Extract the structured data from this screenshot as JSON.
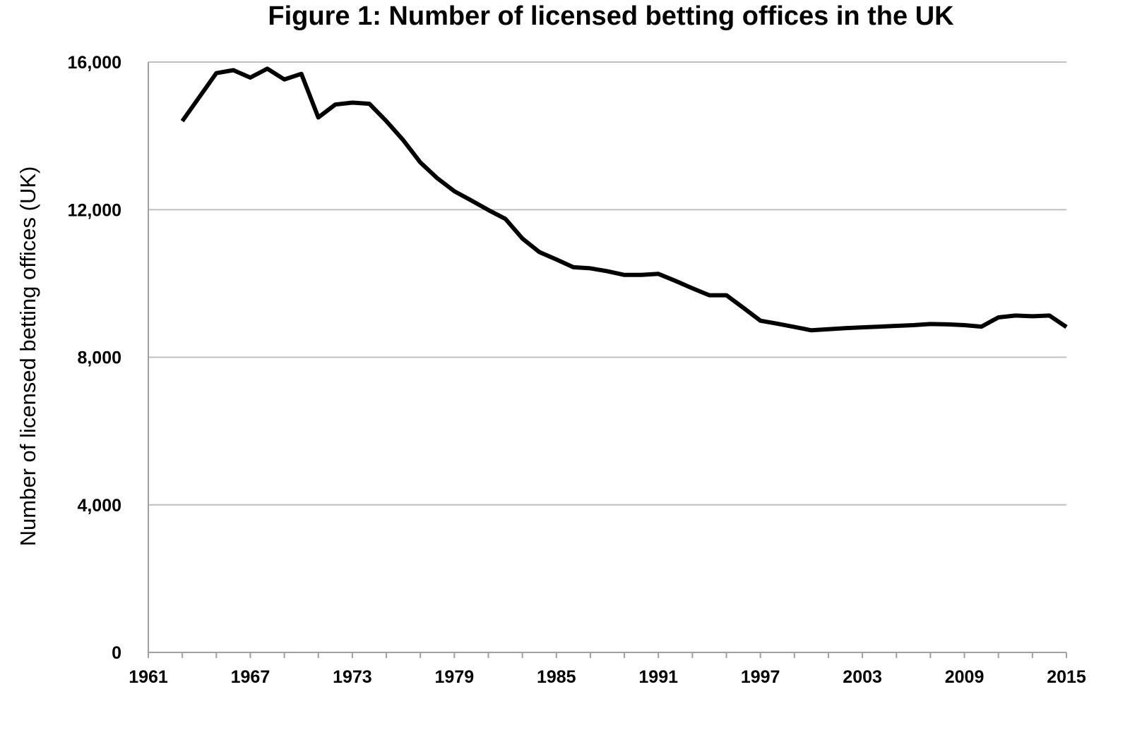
{
  "chart_data": {
    "type": "line",
    "title": "Figure 1: Number of licensed betting offices in the UK",
    "xlabel": "",
    "ylabel": "Number of licensed betting offices (UK)",
    "xlim": [
      1961,
      2015
    ],
    "ylim": [
      0,
      16000
    ],
    "x_ticks": [
      "1961",
      "1967",
      "1973",
      "1979",
      "1985",
      "1991",
      "1997",
      "2003",
      "2009",
      "2015"
    ],
    "y_ticks": [
      "0",
      "4,000",
      "8,000",
      "12,000",
      "16,000"
    ],
    "grid": true,
    "colors": {
      "line": "#000000",
      "grid": "#c0c0c0",
      "axis": "#a0a0a0"
    },
    "series": [
      {
        "x": [
          1963,
          1964,
          1965,
          1966,
          1967,
          1968,
          1969,
          1970,
          1971,
          1972,
          1973,
          1974,
          1975,
          1976,
          1977,
          1978,
          1979,
          1980,
          1981,
          1982,
          1983,
          1984,
          1985,
          1986,
          1987,
          1988,
          1989,
          1990,
          1991,
          1992,
          1993,
          1994,
          1995,
          1996,
          1997,
          1998,
          1999,
          2000,
          2001,
          2002,
          2003,
          2004,
          2005,
          2006,
          2007,
          2008,
          2009,
          2010,
          2011,
          2012,
          2013,
          2014,
          2015
        ],
        "y": [
          14400,
          15050,
          15700,
          15780,
          15580,
          15820,
          15530,
          15680,
          14500,
          14850,
          14900,
          14870,
          14400,
          13880,
          13280,
          12850,
          12500,
          12250,
          11990,
          11750,
          11220,
          10850,
          10650,
          10440,
          10410,
          10330,
          10230,
          10230,
          10260,
          10070,
          9870,
          9680,
          9680,
          9340,
          8990,
          8910,
          8820,
          8730,
          8760,
          8790,
          8810,
          8830,
          8850,
          8870,
          8900,
          8890,
          8870,
          8830,
          9080,
          9130,
          9110,
          9130,
          8820
        ]
      }
    ]
  }
}
